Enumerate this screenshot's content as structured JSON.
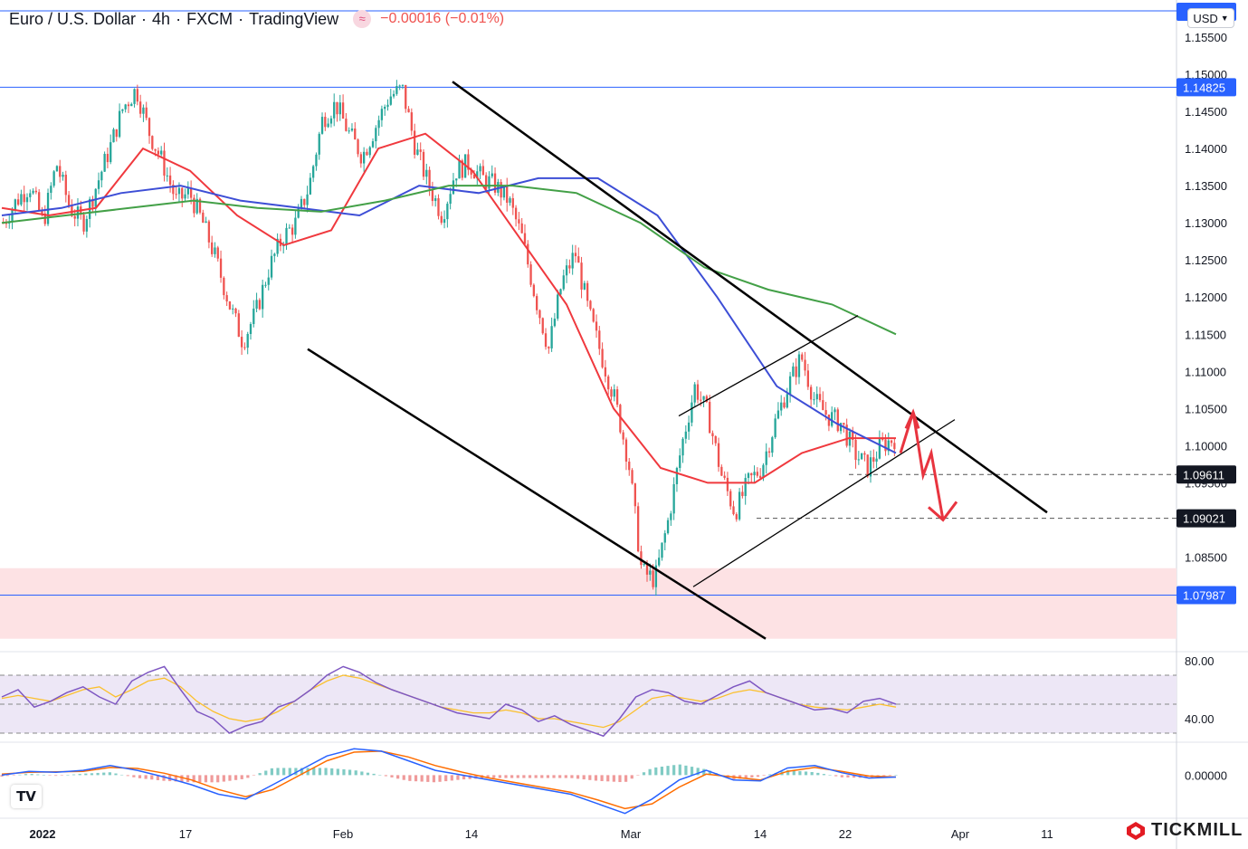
{
  "header": {
    "symbol": "Euro / U.S. Dollar",
    "interval": "4h",
    "broker": "FXCM",
    "platform": "TradingView",
    "change": "−0.00016 (−0.01%)"
  },
  "currency_button": {
    "label": "USD"
  },
  "brand": {
    "name": "TICKMILL",
    "color": "#e31b23"
  },
  "colors": {
    "up": "#26a69a",
    "down": "#ef5350",
    "ma_fast": "#f0393e",
    "ma_mid": "#3d4ed6",
    "ma_slow": "#43a047",
    "rsi": "#7e57c2",
    "rsi_ma": "#fbc02d",
    "macd": "#2962ff",
    "signal": "#ff6d00",
    "hline": "#2962ff",
    "projection": "#e8343f"
  },
  "chart_data": [
    {
      "type": "candlestick",
      "title": "Euro / U.S. Dollar",
      "ylim": [
        1.0725,
        1.16
      ],
      "price_ticks": [
        "1.15500",
        "1.15000",
        "1.14500",
        "1.14000",
        "1.13500",
        "1.13000",
        "1.12500",
        "1.12000",
        "1.11500",
        "1.11000",
        "1.10500",
        "1.10000",
        "1.09500",
        "1.08500"
      ],
      "x_labels": [
        "2022",
        "17",
        "Feb",
        "14",
        "Mar",
        "14",
        "22",
        "Apr",
        "11"
      ],
      "close_path": [
        1.13,
        1.133,
        1.135,
        1.13,
        1.138,
        1.132,
        1.13,
        1.135,
        1.14,
        1.1455,
        1.148,
        1.142,
        1.138,
        1.133,
        1.134,
        1.13,
        1.125,
        1.119,
        1.114,
        1.118,
        1.124,
        1.128,
        1.13,
        1.135,
        1.144,
        1.146,
        1.142,
        1.139,
        1.143,
        1.147,
        1.148,
        1.14,
        1.135,
        1.131,
        1.137,
        1.138,
        1.136,
        1.135,
        1.133,
        1.128,
        1.12,
        1.113,
        1.122,
        1.126,
        1.118,
        1.112,
        1.106,
        1.098,
        1.083,
        1.082,
        1.09,
        1.1,
        1.108,
        1.104,
        1.096,
        1.091,
        1.095,
        1.097,
        1.103,
        1.108,
        1.112,
        1.106,
        1.104,
        1.103,
        1.099,
        1.097,
        1.1,
        1.101
      ],
      "moving_averages": [
        {
          "name": "MA fast",
          "values": [
            1.132,
            1.131,
            1.132,
            1.14,
            1.137,
            1.131,
            1.127,
            1.129,
            1.14,
            1.142,
            1.137,
            1.128,
            1.119,
            1.105,
            1.097,
            1.095,
            1.095,
            1.099,
            1.101,
            1.101
          ]
        },
        {
          "name": "MA mid",
          "values": [
            1.131,
            1.132,
            1.134,
            1.135,
            1.133,
            1.132,
            1.131,
            1.135,
            1.134,
            1.136,
            1.136,
            1.131,
            1.12,
            1.108,
            1.103,
            1.099
          ]
        },
        {
          "name": "MA slow",
          "values": [
            1.13,
            1.131,
            1.132,
            1.133,
            1.132,
            1.1315,
            1.133,
            1.135,
            1.135,
            1.134,
            1.13,
            1.124,
            1.121,
            1.119,
            1.115
          ]
        }
      ],
      "price_labels": [
        {
          "text": "1.14825",
          "value": 1.14825,
          "style": "blue"
        },
        {
          "text": "1.09611",
          "value": 1.09611,
          "style": "black"
        },
        {
          "text": "1.09021",
          "value": 1.09021,
          "style": "black"
        },
        {
          "text": "1.07987",
          "value": 1.07987,
          "style": "blue"
        }
      ],
      "support_zone": [
        1.074,
        1.0835
      ],
      "projection_zigzag": [
        1.099,
        1.1045,
        1.096,
        1.099,
        1.09
      ]
    },
    {
      "type": "line",
      "name": "RSI",
      "ylim": [
        25,
        85
      ],
      "y_ticks": [
        "80.00",
        "40.00"
      ],
      "band": [
        30,
        70
      ],
      "rsi_values": [
        55,
        60,
        48,
        52,
        58,
        62,
        55,
        50,
        66,
        72,
        76,
        60,
        45,
        40,
        30,
        35,
        38,
        48,
        52,
        60,
        70,
        76,
        72,
        65,
        60,
        56,
        52,
        48,
        44,
        42,
        40,
        50,
        46,
        38,
        42,
        36,
        32,
        28,
        40,
        55,
        60,
        58,
        52,
        50,
        56,
        62,
        66,
        58,
        54,
        50,
        46,
        47,
        44,
        52,
        54,
        50
      ],
      "rsi_ma_values": [
        54,
        56,
        54,
        52,
        56,
        60,
        62,
        55,
        60,
        66,
        68,
        62,
        52,
        45,
        40,
        38,
        40,
        45,
        52,
        60,
        66,
        70,
        68,
        64,
        60,
        56,
        52,
        48,
        46,
        44,
        44,
        46,
        44,
        40,
        40,
        38,
        36,
        34,
        38,
        46,
        54,
        56,
        54,
        52,
        54,
        58,
        60,
        58,
        54,
        50,
        48,
        47,
        46,
        48,
        50,
        48
      ]
    },
    {
      "type": "line",
      "name": "MACD",
      "ylim": [
        -0.009,
        0.0065
      ],
      "y_ticks": [
        "0.00000"
      ],
      "macd_values": [
        0.0,
        0.0008,
        0.0006,
        0.001,
        0.002,
        0.001,
        -0.0004,
        -0.002,
        -0.004,
        -0.005,
        -0.002,
        0.001,
        0.004,
        0.0055,
        0.005,
        0.003,
        0.001,
        0.0,
        -0.001,
        -0.002,
        -0.003,
        -0.004,
        -0.006,
        -0.008,
        -0.005,
        -0.001,
        0.001,
        -0.001,
        -0.0012,
        0.0015,
        0.002,
        0.0005,
        -0.0006,
        -0.0004
      ],
      "signal_values": [
        0.0002,
        0.0006,
        0.0007,
        0.0008,
        0.0016,
        0.0014,
        0.0004,
        -0.001,
        -0.003,
        -0.0045,
        -0.003,
        0.0,
        0.003,
        0.0048,
        0.005,
        0.0038,
        0.002,
        0.0006,
        -0.0006,
        -0.0016,
        -0.0026,
        -0.0036,
        -0.0052,
        -0.007,
        -0.006,
        -0.0025,
        0.0002,
        -0.0004,
        -0.001,
        0.0008,
        0.0016,
        0.0008,
        -0.0002,
        -0.0004
      ]
    }
  ]
}
